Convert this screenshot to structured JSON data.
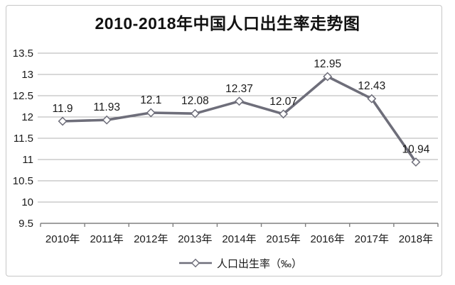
{
  "chart_data": {
    "type": "line",
    "title": "2010-2018年中国人口出生率走势图",
    "categories": [
      "2010年",
      "2011年",
      "2012年",
      "2013年",
      "2014年",
      "2015年",
      "2016年",
      "2017年",
      "2018年"
    ],
    "series": [
      {
        "name": "人口出生率（‰）",
        "values": [
          11.9,
          11.93,
          12.1,
          12.08,
          12.37,
          12.07,
          12.95,
          12.43,
          10.94
        ],
        "data_labels": [
          "11.9",
          "11.93",
          "12.1",
          "12.08",
          "12.37",
          "12.07",
          "12.95",
          "12.43",
          "10.94"
        ]
      }
    ],
    "xlabel": "",
    "ylabel": "",
    "ylim": [
      9.5,
      13.5
    ],
    "y_tick_step": 0.5,
    "y_tick_labels": [
      "13.5",
      "13",
      "12.5",
      "12",
      "11.5",
      "11",
      "10.5",
      "10",
      "9.5"
    ],
    "grid": true,
    "legend_position": "bottom",
    "marker": "open-diamond",
    "colors": {
      "line": "#6e6e7a",
      "marker_fill": "#ffffff",
      "grid": "#b2b2b2",
      "axis": "#808080",
      "text": "#1a1a1a",
      "title": "#111111",
      "frame_border": "#c6c6c6",
      "background": "#ffffff"
    }
  }
}
